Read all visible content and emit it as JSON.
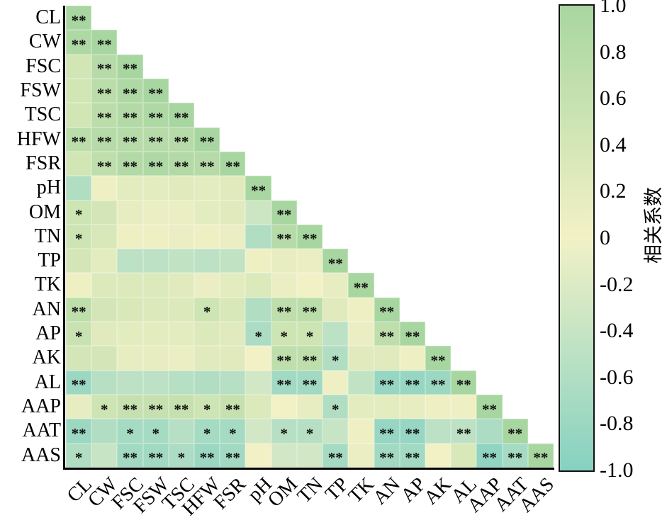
{
  "chart_data": {
    "type": "heatmap",
    "subtype": "lower-triangular-correlation-matrix",
    "title": "",
    "variables": [
      "CL",
      "CW",
      "FSC",
      "FSW",
      "TSC",
      "HFW",
      "FSR",
      "pH",
      "OM",
      "TN",
      "TP",
      "TK",
      "AN",
      "AP",
      "AK",
      "AL",
      "AAP",
      "AAT",
      "AAS"
    ],
    "values": [
      [
        1
      ],
      [
        0.9,
        1
      ],
      [
        0.45,
        0.8,
        1
      ],
      [
        0.45,
        0.75,
        0.9,
        1
      ],
      [
        0.45,
        0.75,
        0.85,
        0.9,
        1
      ],
      [
        0.75,
        0.8,
        0.8,
        0.8,
        0.8,
        1
      ],
      [
        0.45,
        0.7,
        0.85,
        0.9,
        0.85,
        0.8,
        1
      ],
      [
        -0.6,
        0.05,
        0.2,
        0.2,
        0.25,
        0.2,
        0.25,
        1
      ],
      [
        0.5,
        0.4,
        0.15,
        0.1,
        0.1,
        0.2,
        0.25,
        -0.35,
        1
      ],
      [
        0.5,
        0.35,
        0.05,
        0.05,
        0.1,
        0.05,
        0.1,
        -0.6,
        0.8,
        1
      ],
      [
        0.4,
        0.2,
        -0.5,
        -0.5,
        -0.45,
        -0.5,
        -0.45,
        0.05,
        0.15,
        0.1,
        1
      ],
      [
        0.05,
        0.3,
        0.3,
        0.3,
        0.25,
        0.1,
        0.2,
        0.3,
        0.1,
        0,
        0.15,
        1
      ],
      [
        0.7,
        0.4,
        0.35,
        0.3,
        0.3,
        0.5,
        0.35,
        -0.6,
        0.7,
        0.75,
        0.25,
        0.05,
        1
      ],
      [
        0.55,
        0.25,
        0.2,
        0.2,
        0.2,
        0.3,
        0.25,
        -0.65,
        0.5,
        0.5,
        -0.5,
        0.1,
        0.7,
        1
      ],
      [
        0.4,
        0.4,
        0.15,
        0.15,
        0.1,
        0.25,
        0.25,
        0,
        0.7,
        0.7,
        -0.6,
        0.25,
        0.25,
        0.05,
        1
      ],
      [
        -0.8,
        -0.55,
        -0.5,
        -0.5,
        -0.55,
        -0.6,
        -0.55,
        -0.3,
        -0.75,
        -0.75,
        0.05,
        -0.45,
        -0.85,
        -0.85,
        -0.8,
        1
      ],
      [
        0.15,
        0.5,
        0.6,
        0.6,
        0.6,
        0.5,
        0.6,
        0.3,
        0,
        0.15,
        -0.6,
        0.2,
        0.2,
        0.15,
        0.05,
        0.05,
        1
      ],
      [
        -0.8,
        -0.6,
        -0.7,
        -0.7,
        -0.55,
        -0.7,
        -0.7,
        -0.3,
        -0.55,
        -0.55,
        -0.4,
        0.05,
        -0.85,
        -0.85,
        -0.5,
        -0.5,
        -0.65,
        1
      ],
      [
        -0.6,
        -0.4,
        -0.75,
        -0.75,
        -0.65,
        -0.8,
        -0.75,
        0,
        -0.3,
        -0.3,
        -0.7,
        0.1,
        -0.75,
        -0.75,
        0,
        0.35,
        -0.9,
        -0.7,
        1
      ]
    ],
    "significance": [
      [
        "**"
      ],
      [
        "**",
        "**"
      ],
      [
        "",
        "**",
        "**"
      ],
      [
        "",
        "**",
        "**",
        "**"
      ],
      [
        "",
        "**",
        "**",
        "**",
        "**"
      ],
      [
        "**",
        "**",
        "**",
        "**",
        "**",
        "**"
      ],
      [
        "",
        "**",
        "**",
        "**",
        "**",
        "**",
        "**"
      ],
      [
        "",
        "",
        "",
        "",
        "",
        "",
        "",
        "**"
      ],
      [
        "*",
        "",
        "",
        "",
        "",
        "",
        "",
        "",
        "**"
      ],
      [
        "*",
        "",
        "",
        "",
        "",
        "",
        "",
        "",
        "**",
        "**"
      ],
      [
        "",
        "",
        "",
        "",
        "",
        "",
        "",
        "",
        "",
        "",
        "**"
      ],
      [
        "",
        "",
        "",
        "",
        "",
        "",
        "",
        "",
        "",
        "",
        "",
        "**"
      ],
      [
        "**",
        "",
        "",
        "",
        "",
        "*",
        "",
        "",
        "**",
        "**",
        "",
        "",
        "**"
      ],
      [
        "*",
        "",
        "",
        "",
        "",
        "",
        "",
        "*",
        "*",
        "*",
        "",
        "",
        "**",
        "**"
      ],
      [
        "",
        "",
        "",
        "",
        "",
        "",
        "",
        "",
        "**",
        "**",
        "*",
        "",
        "",
        "",
        "**"
      ],
      [
        "**",
        "",
        "",
        "",
        "",
        "",
        "",
        "",
        "**",
        "**",
        "",
        "",
        "**",
        "**",
        "**",
        "**"
      ],
      [
        "",
        "*",
        "**",
        "**",
        "**",
        "*",
        "**",
        "",
        "",
        "",
        "*",
        "",
        "",
        "",
        "",
        "",
        "**"
      ],
      [
        "**",
        "",
        "*",
        "*",
        "",
        "*",
        "*",
        "",
        "*",
        "*",
        "",
        "",
        "**",
        "**",
        "",
        "**",
        "",
        "**"
      ],
      [
        "*",
        "",
        "**",
        "**",
        "*",
        "**",
        "**",
        "",
        "",
        "",
        "**",
        "",
        "**",
        "**",
        "",
        "",
        "**",
        "**",
        "**"
      ]
    ],
    "colorbar": {
      "label": "相关系数",
      "ticks": [
        "1.0",
        "0.8",
        "0.6",
        "0.4",
        "0.2",
        "0",
        "-0.2",
        "-0.4",
        "-0.6",
        "-0.8",
        "-1.0"
      ],
      "min": -1,
      "max": 1,
      "position": "right"
    },
    "colors": {
      "positive_end": "#a8d6a0",
      "zero": "#f2f1c6",
      "negative_end": "#86d1c1",
      "axis": "#000000",
      "stars": "#111111"
    },
    "grid": true,
    "legend_position": "right"
  }
}
